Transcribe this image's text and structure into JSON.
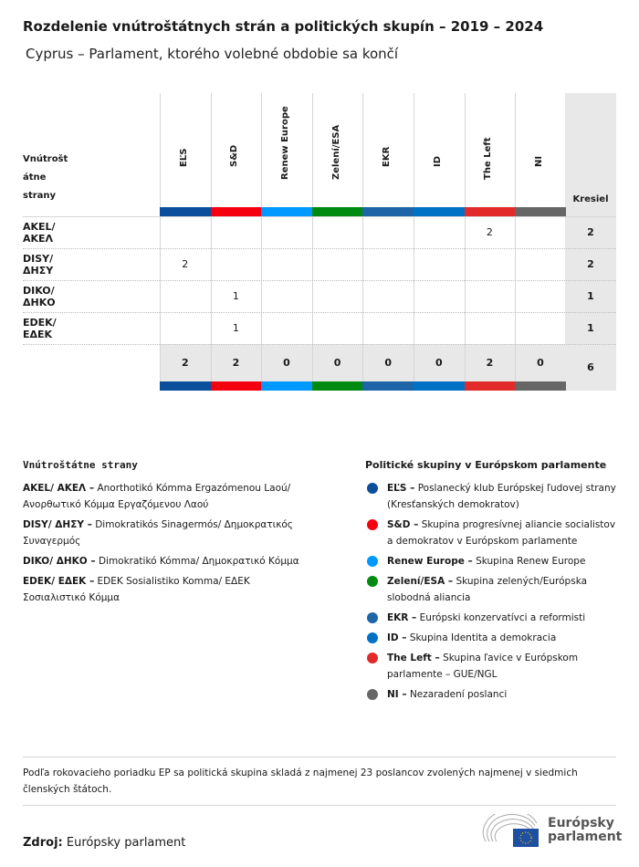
{
  "title": "Rozdelenie vnútroštátnych strán a politických skupín – 2019 – 2024",
  "subtitle": "Cyprus – Parlament, ktorého volebné obdobie sa končí",
  "chart_data": {
    "type": "table",
    "row_header": "Vnútrošt\nátne\nstrany",
    "total_header": "Kresiel",
    "groups": [
      {
        "label": "EĽS",
        "color": "#0b4f9c"
      },
      {
        "label": "S&D",
        "color": "#f5000f"
      },
      {
        "label": "Renew Europe",
        "color": "#0099ff"
      },
      {
        "label": "Zelení/ESA",
        "color": "#008a12"
      },
      {
        "label": "EKR",
        "color": "#1d65a6"
      },
      {
        "label": "ID",
        "color": "#0072c6"
      },
      {
        "label": "The Left",
        "color": "#e22a2a"
      },
      {
        "label": "NI",
        "color": "#666666"
      }
    ],
    "rows": [
      {
        "party": "AKEL/ ΑΚΕΛ",
        "values": [
          null,
          null,
          null,
          null,
          null,
          null,
          2,
          null
        ],
        "total": 2
      },
      {
        "party": "DISY/ ΔΗΣΥ",
        "values": [
          2,
          null,
          null,
          null,
          null,
          null,
          null,
          null
        ],
        "total": 2
      },
      {
        "party": "DIKO/ ΔΗΚΟ",
        "values": [
          null,
          1,
          null,
          null,
          null,
          null,
          null,
          null
        ],
        "total": 1
      },
      {
        "party": "EDEK/ ΕΔΕΚ",
        "values": [
          null,
          1,
          null,
          null,
          null,
          null,
          null,
          null
        ],
        "total": 1
      }
    ],
    "totals": [
      2,
      2,
      0,
      0,
      0,
      0,
      2,
      0
    ],
    "grand_total": 6
  },
  "legend_parties": {
    "title": "Vnútroštátne strany",
    "items": [
      {
        "abbr": "AKEL/ ΑΚΕΛ –",
        "name": "Anorthotikó Kómma Ergazómenou Laoú/ Ανορθωτικό Κόμμα Εργαζόμενου Λαού"
      },
      {
        "abbr": "DISY/ ΔΗΣΥ –",
        "name": "Dimokratikós Sinagermós/ Δημοκρατικός Συναγερμός"
      },
      {
        "abbr": "DIKO/ ΔΗΚΟ –",
        "name": "Dimokratikó Kómma/ Δημοκρατικό Κόμμα"
      },
      {
        "abbr": "EDEK/ ΕΔΕΚ –",
        "name": "EDEK Sosialistiko Komma/ ΕΔΕΚ Σοσιαλιστικό Κόμμα"
      }
    ]
  },
  "legend_groups": {
    "title": "Politické skupiny v Európskom parlamente",
    "items": [
      {
        "abbr": "EĽS –",
        "name": "Poslanecký klub Európskej ľudovej strany (Kresťanských demokratov)"
      },
      {
        "abbr": "S&D –",
        "name": "Skupina progresívnej aliancie socialistov a demokratov v Európskom parlamente"
      },
      {
        "abbr": "Renew Europe –",
        "name": "Skupina Renew Europe"
      },
      {
        "abbr": "Zelení/ESA –",
        "name": "Skupina zelených/Európska slobodná aliancia"
      },
      {
        "abbr": "EKR –",
        "name": "Európski konzervatívci a reformisti"
      },
      {
        "abbr": "ID –",
        "name": "Skupina Identita a demokracia"
      },
      {
        "abbr": "The Left –",
        "name": "Skupina ľavice v Európskom parlamente – GUE/NGL"
      },
      {
        "abbr": "NI –",
        "name": "Nezaradení poslanci"
      }
    ]
  },
  "note": "Podľa rokovacieho poriadku EP sa politická skupina skladá z najmenej 23 poslancov zvolených najmenej v siedmich členských štátoch.",
  "source_label": "Zdroj:",
  "source": "Európsky parlament",
  "logo_text": "Európsky parlament"
}
